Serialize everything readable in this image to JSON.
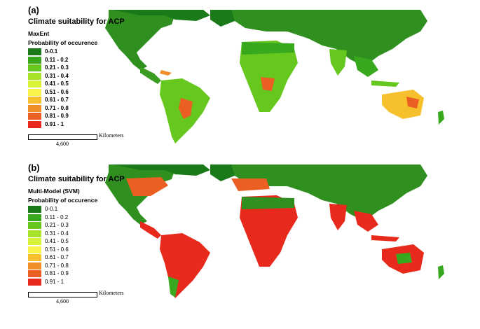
{
  "panels": [
    {
      "id": "a",
      "letter": "(a)",
      "title": "Climate suitability for ACP",
      "model": "MaxEnt",
      "legend_title": "Probability of occurence",
      "scale_unit": "Kilometers",
      "scale_value": "4,600",
      "dominant": "suitability-low"
    },
    {
      "id": "b",
      "letter": "(b)",
      "title": "Climate suitability for ACP",
      "model": "Multi-Model (SVM)",
      "legend_title": "Probability of occurence",
      "scale_unit": "Kilometers",
      "scale_value": "4,600",
      "dominant": "suitability-high"
    }
  ],
  "legend": [
    {
      "label": "0-0.1",
      "color": "#1a7a1a"
    },
    {
      "label": "0.11 - 0.2",
      "color": "#38a81e"
    },
    {
      "label": "0.21 - 0.3",
      "color": "#66c81e"
    },
    {
      "label": "0.31 - 0.4",
      "color": "#a8e22a"
    },
    {
      "label": "0.41 - 0.5",
      "color": "#d8f23a"
    },
    {
      "label": "0.51 - 0.6",
      "color": "#fbf24a"
    },
    {
      "label": "0.61 - 0.7",
      "color": "#f6bf2c"
    },
    {
      "label": "0.71 - 0.8",
      "color": "#f08f2a"
    },
    {
      "label": "0.81 - 0.9",
      "color": "#ec5f22"
    },
    {
      "label": "0.91 - 1",
      "color": "#e82a1c"
    }
  ]
}
